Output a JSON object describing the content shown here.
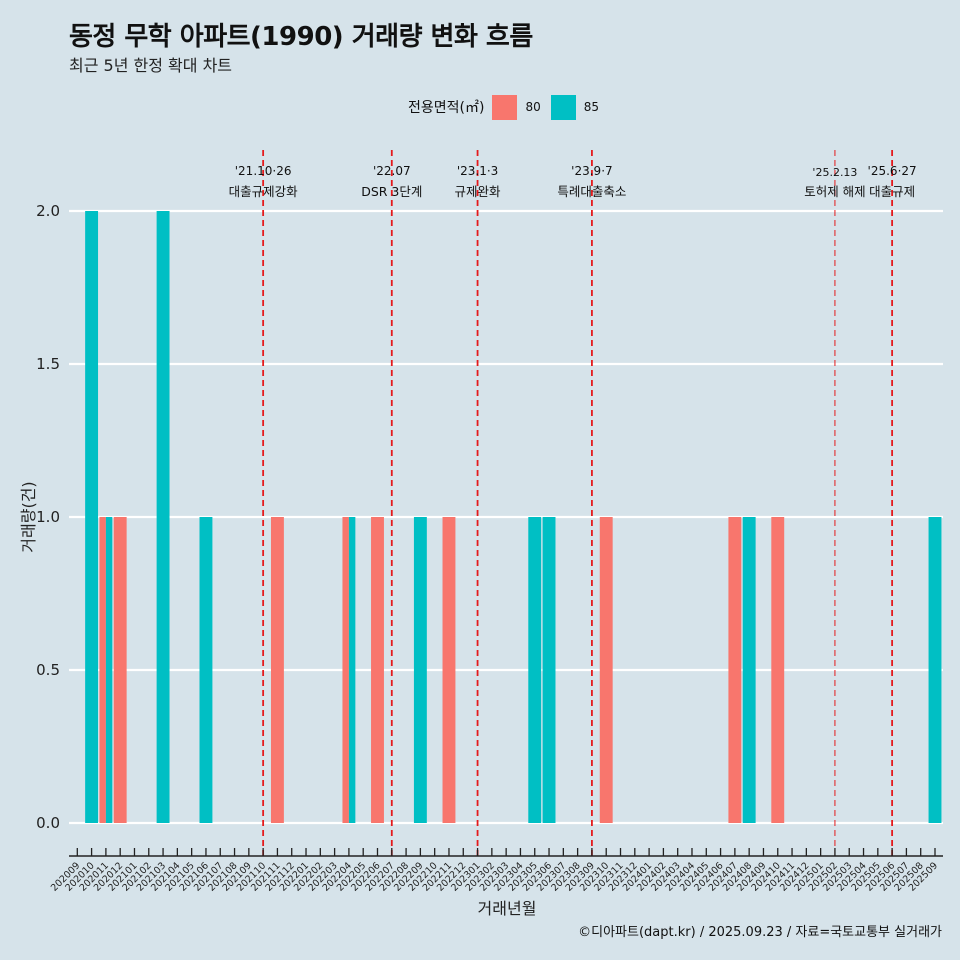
{
  "header": {
    "title": "동정 무학 아파트(1990) 거래량 변화 흐름",
    "subtitle": "최근 5년 한정 확대 차트"
  },
  "legend": {
    "title": "전용면적(㎡)",
    "items": [
      {
        "label": "80",
        "color": "#f8766d"
      },
      {
        "label": "85",
        "color": "#00bfc4"
      }
    ]
  },
  "caption": "©디아파트(dapt.kr) / 2025.09.23 / 자료=국토교통부 실거래가",
  "chart_data": {
    "type": "bar",
    "title": "동정 무학 아파트(1990) 거래량 변화 흐름",
    "subtitle": "최근 5년 한정 확대 차트",
    "xlabel": "거래년월",
    "ylabel": "거래량(건)",
    "ylim": [
      0,
      2
    ],
    "yticks": [
      "0.0",
      "0.5",
      "1.0",
      "1.5",
      "2.0"
    ],
    "ytick_values": [
      0,
      0.5,
      1.0,
      1.5,
      2.0
    ],
    "grid": true,
    "legend_position": "top",
    "barmode": "dodge",
    "categories": [
      "202009",
      "202010",
      "202011",
      "202012",
      "202101",
      "202102",
      "202103",
      "202104",
      "202105",
      "202106",
      "202107",
      "202108",
      "202109",
      "202110",
      "202111",
      "202112",
      "202201",
      "202202",
      "202203",
      "202204",
      "202205",
      "202206",
      "202207",
      "202208",
      "202209",
      "202210",
      "202211",
      "202212",
      "202301",
      "202302",
      "202303",
      "202304",
      "202305",
      "202306",
      "202307",
      "202308",
      "202309",
      "202310",
      "202311",
      "202312",
      "202401",
      "202402",
      "202403",
      "202404",
      "202405",
      "202406",
      "202407",
      "202408",
      "202409",
      "202410",
      "202411",
      "202412",
      "202501",
      "202502",
      "202503",
      "202504",
      "202505",
      "202506",
      "202507",
      "202508",
      "202509"
    ],
    "series": [
      {
        "name": "80",
        "color": "#f8766d",
        "points": [
          {
            "x": "202011",
            "y": 1
          },
          {
            "x": "202012",
            "y": 1
          },
          {
            "x": "202111",
            "y": 1
          },
          {
            "x": "202204",
            "y": 1
          },
          {
            "x": "202206",
            "y": 1
          },
          {
            "x": "202211",
            "y": 1
          },
          {
            "x": "202310",
            "y": 1
          },
          {
            "x": "202407",
            "y": 1
          },
          {
            "x": "202410",
            "y": 1
          }
        ]
      },
      {
        "name": "85",
        "color": "#00bfc4",
        "points": [
          {
            "x": "202010",
            "y": 2
          },
          {
            "x": "202011",
            "y": 1
          },
          {
            "x": "202103",
            "y": 2
          },
          {
            "x": "202106",
            "y": 1
          },
          {
            "x": "202204",
            "y": 1
          },
          {
            "x": "202209",
            "y": 1
          },
          {
            "x": "202305",
            "y": 1
          },
          {
            "x": "202306",
            "y": 1
          },
          {
            "x": "202408",
            "y": 1
          },
          {
            "x": "202509",
            "y": 1
          }
        ]
      }
    ],
    "annotations": [
      {
        "x": "202110",
        "date": "'21.10·26",
        "label": "대출규제강화",
        "style": "bold"
      },
      {
        "x": "202207",
        "date": "'22.07",
        "label": "DSR 3단계",
        "style": "bold"
      },
      {
        "x": "202301",
        "date": "'23.1·3",
        "label": "규제완화",
        "style": "bold"
      },
      {
        "x": "202309",
        "date": "'23.9·7",
        "label": "특례대출축소",
        "style": "bold"
      },
      {
        "x": "202502",
        "date": "'25.2.13",
        "label": "토허제 해제",
        "style": "thin"
      },
      {
        "x": "202506",
        "date": "'25.6·27",
        "label": "대출규제",
        "style": "bold"
      }
    ],
    "annotation_line_color": "#e41a1c"
  }
}
